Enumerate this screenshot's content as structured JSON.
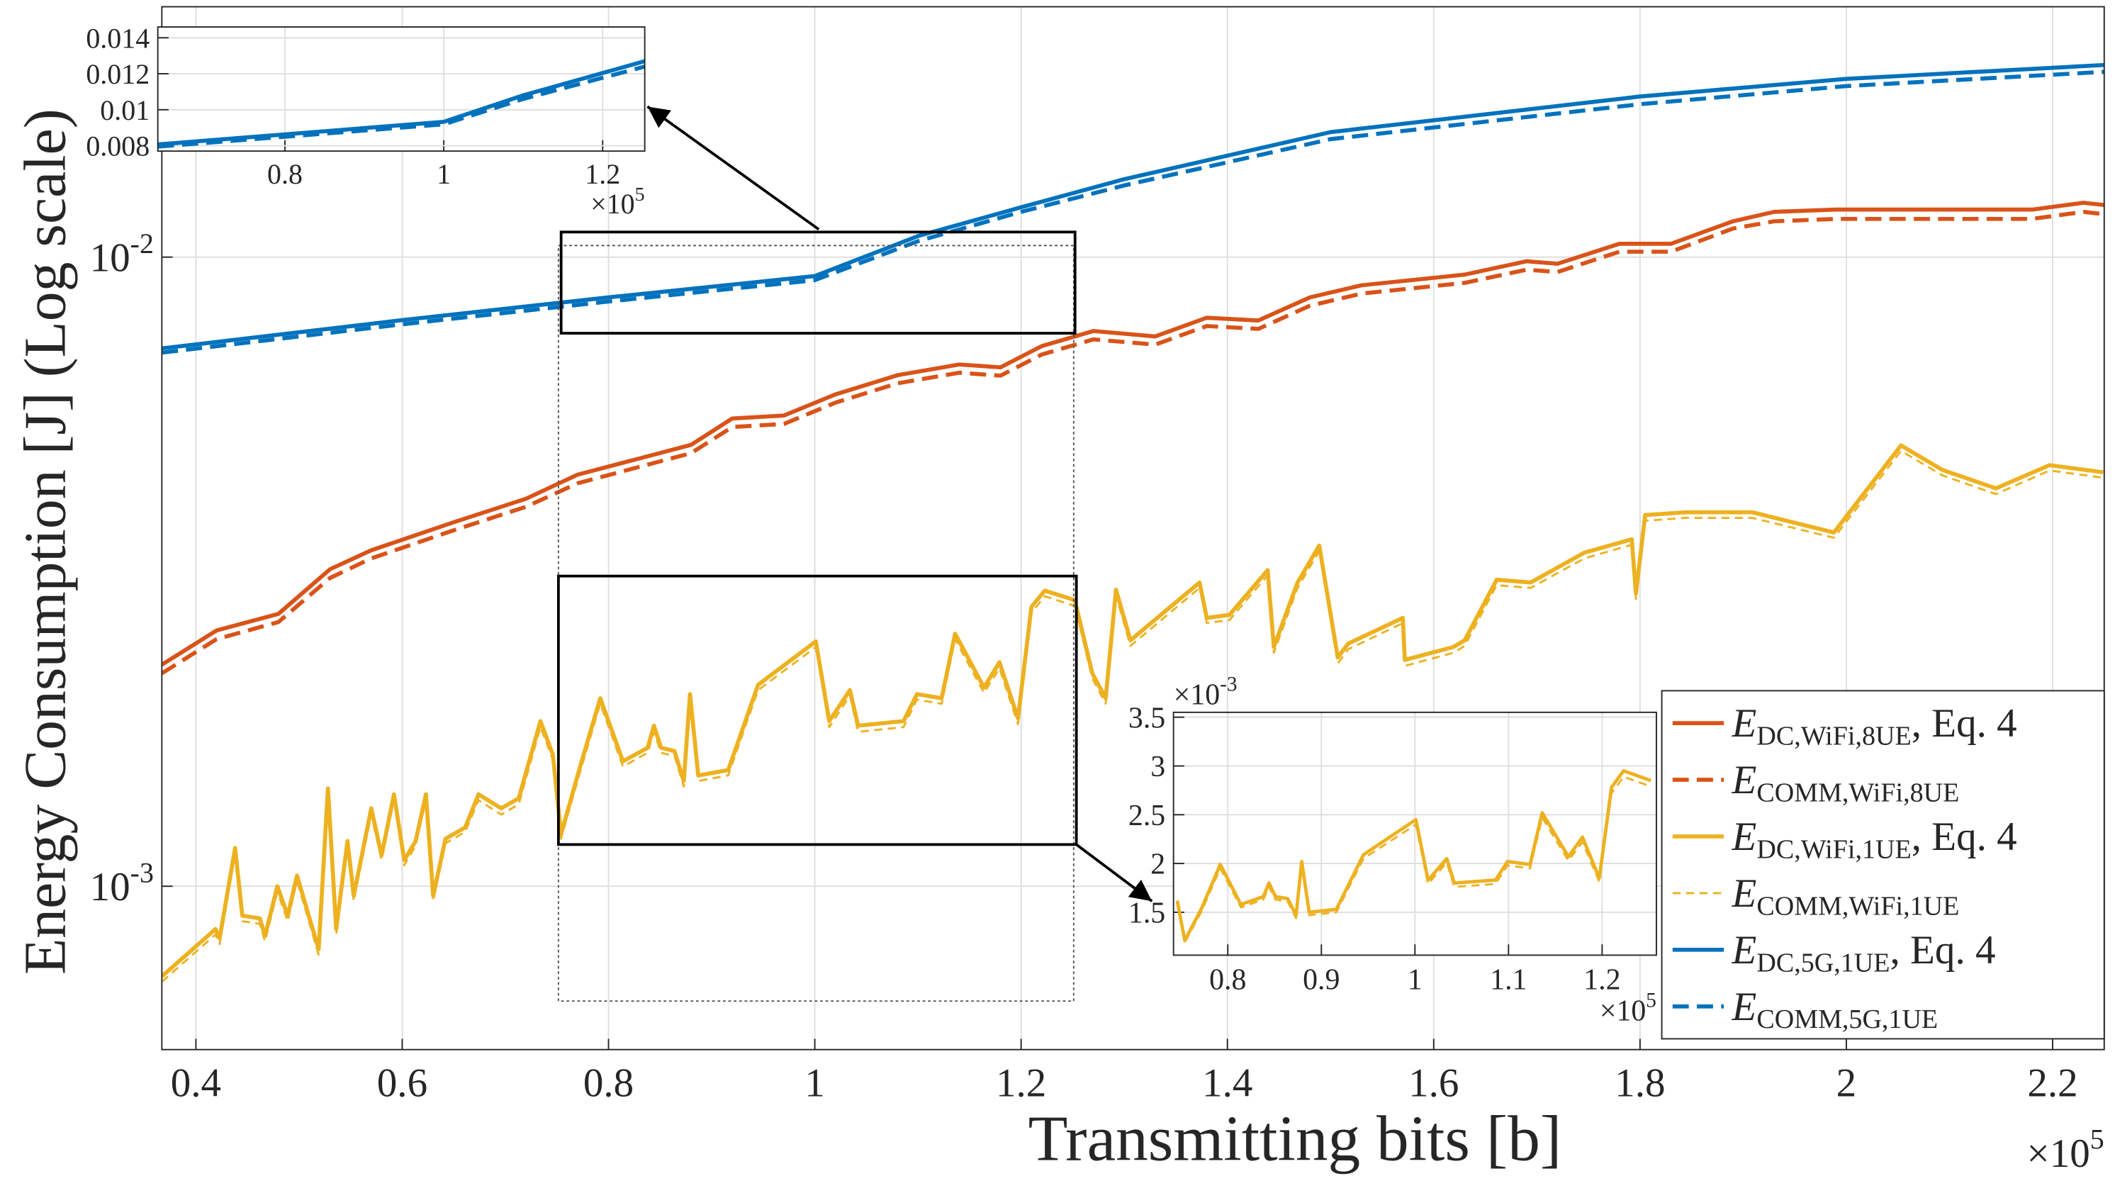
{
  "chart_data": [
    {
      "type": "line",
      "yscale": "log",
      "grid": true,
      "legend": "lower right",
      "xlabel": "Transmitting bits [b]",
      "ylabel": "Energy Consumption [J] (Log scale)",
      "x_multiplier": {
        "label": "×10",
        "exponent": "5"
      },
      "xlim": [
        0.367,
        2.25
      ],
      "ylim": [
        0.00055,
        0.025
      ],
      "xticks": [
        0.4,
        0.6,
        0.8,
        1,
        1.2,
        1.4,
        1.6,
        1.8,
        2,
        2.2
      ],
      "yticks": [
        {
          "value": 0.001,
          "label": "10",
          "exponent": "-3"
        },
        {
          "value": 0.01,
          "label": "10",
          "exponent": "-2"
        }
      ],
      "series": [
        {
          "name": "E",
          "subscript": "DC,WiFi,8UE",
          "suffix": ", Eq. 4",
          "color": "#D95319",
          "linestyle": "solid",
          "linewidth": 3,
          "x": [
            0.367,
            0.42,
            0.48,
            0.53,
            0.57,
            0.65,
            0.72,
            0.77,
            0.88,
            0.92,
            0.97,
            1.02,
            1.08,
            1.14,
            1.18,
            1.22,
            1.27,
            1.33,
            1.38,
            1.43,
            1.48,
            1.53,
            1.63,
            1.69,
            1.72,
            1.78,
            1.83,
            1.89,
            1.93,
            1.99,
            2.06,
            2.13,
            2.18,
            2.23,
            2.25
          ],
          "values": [
            0.00225,
            0.00255,
            0.00271,
            0.00319,
            0.00342,
            0.00379,
            0.00413,
            0.00451,
            0.00503,
            0.00554,
            0.0056,
            0.00605,
            0.00649,
            0.00675,
            0.00668,
            0.00722,
            0.00763,
            0.00748,
            0.00801,
            0.00793,
            0.00863,
            0.00902,
            0.00938,
            0.00985,
            0.00976,
            0.0105,
            0.0105,
            0.0114,
            0.0118,
            0.0119,
            0.0119,
            0.0119,
            0.0119,
            0.0122,
            0.0121
          ]
        },
        {
          "name": "E",
          "subscript": "COMM,WiFi,8UE",
          "color": "#D95319",
          "linestyle": "dashed",
          "linewidth": 3,
          "x": [
            0.367,
            0.42,
            0.48,
            0.53,
            0.57,
            0.65,
            0.72,
            0.77,
            0.88,
            0.92,
            0.97,
            1.02,
            1.08,
            1.14,
            1.18,
            1.22,
            1.27,
            1.33,
            1.38,
            1.43,
            1.48,
            1.53,
            1.63,
            1.69,
            1.72,
            1.78,
            1.83,
            1.89,
            1.93,
            1.99,
            2.06,
            2.13,
            2.18,
            2.23,
            2.25
          ],
          "values": [
            0.00218,
            0.00247,
            0.00263,
            0.00309,
            0.00332,
            0.00368,
            0.00401,
            0.00437,
            0.00488,
            0.00537,
            0.00543,
            0.00587,
            0.0063,
            0.00655,
            0.00648,
            0.007,
            0.0074,
            0.00726,
            0.00777,
            0.00769,
            0.00837,
            0.00875,
            0.0091,
            0.00955,
            0.00947,
            0.0102,
            0.0102,
            0.0111,
            0.0114,
            0.0115,
            0.0115,
            0.0115,
            0.0115,
            0.0118,
            0.0117
          ]
        },
        {
          "name": "E",
          "subscript": "DC,WiFi,1UE",
          "suffix": ", Eq. 4",
          "color": "#EDB120",
          "linestyle": "solid",
          "linewidth": 3,
          "x": [
            0.367,
            0.419,
            0.423,
            0.438,
            0.445,
            0.462,
            0.467,
            0.479,
            0.489,
            0.498,
            0.519,
            0.528,
            0.536,
            0.547,
            0.553,
            0.57,
            0.58,
            0.592,
            0.602,
            0.613,
            0.623,
            0.63,
            0.642,
            0.661,
            0.674,
            0.696,
            0.713,
            0.734,
            0.746,
            0.754,
            0.772,
            0.792,
            0.814,
            0.838,
            0.844,
            0.851,
            0.864,
            0.873,
            0.879,
            0.887,
            0.916,
            0.945,
            1.001,
            1.014,
            1.034,
            1.042,
            1.086,
            1.099,
            1.123,
            1.136,
            1.164,
            1.179,
            1.197,
            1.21,
            1.223,
            1.252,
            1.269,
            1.282,
            1.292,
            1.306,
            1.373,
            1.38,
            1.402,
            1.439,
            1.445,
            1.468,
            1.489,
            1.507,
            1.517,
            1.57,
            1.572,
            1.619,
            1.63,
            1.661,
            1.694,
            1.746,
            1.792,
            1.796,
            1.805,
            1.844,
            1.909,
            1.988,
            2.053,
            2.093,
            2.145,
            2.197,
            2.249
          ],
          "values": [
            0.000719,
            0.000855,
            0.000826,
            0.00115,
            0.000898,
            0.000889,
            0.000834,
            0.001,
            0.000898,
            0.00104,
            0.000794,
            0.00143,
            0.000855,
            0.00118,
            0.000966,
            0.00133,
            0.00112,
            0.0014,
            0.0011,
            0.00118,
            0.0014,
            0.000966,
            0.00119,
            0.00124,
            0.0014,
            0.00133,
            0.00138,
            0.00183,
            0.00162,
            0.00121,
            0.00154,
            0.00199,
            0.00158,
            0.00166,
            0.0018,
            0.00166,
            0.00164,
            0.00147,
            0.00202,
            0.0015,
            0.00153,
            0.00209,
            0.00245,
            0.00183,
            0.00205,
            0.0018,
            0.00183,
            0.00202,
            0.00199,
            0.00252,
            0.00207,
            0.00227,
            0.00185,
            0.00278,
            0.00295,
            0.00285,
            0.00218,
            0.00199,
            0.00296,
            0.00246,
            0.00304,
            0.00267,
            0.0027,
            0.00318,
            0.0024,
            0.00304,
            0.00348,
            0.00231,
            0.00243,
            0.00267,
            0.00229,
            0.0024,
            0.00246,
            0.00307,
            0.00304,
            0.00339,
            0.00356,
            0.00292,
            0.00389,
            0.00393,
            0.00393,
            0.00365,
            0.00502,
            0.00459,
            0.00429,
            0.00467,
            0.00455
          ]
        },
        {
          "name": "E",
          "subscript": "COMM,WiFi,1UE",
          "color": "#EDB120",
          "linestyle": "dashed",
          "linewidth": 1.5,
          "x": [
            0.367,
            0.419,
            0.423,
            0.438,
            0.445,
            0.462,
            0.467,
            0.479,
            0.489,
            0.498,
            0.519,
            0.528,
            0.536,
            0.547,
            0.553,
            0.57,
            0.58,
            0.592,
            0.602,
            0.613,
            0.623,
            0.63,
            0.642,
            0.661,
            0.674,
            0.696,
            0.713,
            0.734,
            0.746,
            0.754,
            0.772,
            0.792,
            0.814,
            0.838,
            0.844,
            0.851,
            0.864,
            0.873,
            0.879,
            0.887,
            0.916,
            0.945,
            1.001,
            1.014,
            1.034,
            1.042,
            1.086,
            1.099,
            1.123,
            1.136,
            1.164,
            1.179,
            1.197,
            1.21,
            1.223,
            1.252,
            1.269,
            1.282,
            1.292,
            1.306,
            1.373,
            1.38,
            1.402,
            1.439,
            1.445,
            1.468,
            1.489,
            1.507,
            1.517,
            1.57,
            1.572,
            1.619,
            1.63,
            1.661,
            1.694,
            1.746,
            1.792,
            1.796,
            1.805,
            1.844,
            1.909,
            1.988,
            2.053,
            2.093,
            2.145,
            2.197,
            2.249
          ],
          "values": [
            0.000705,
            0.000838,
            0.000809,
            0.00113,
            0.00088,
            0.000871,
            0.000817,
            0.00098,
            0.00088,
            0.00102,
            0.000778,
            0.0014,
            0.000838,
            0.00116,
            0.000947,
            0.0013,
            0.0011,
            0.00137,
            0.00108,
            0.00116,
            0.00137,
            0.000947,
            0.00117,
            0.00122,
            0.00137,
            0.0013,
            0.00135,
            0.00179,
            0.00159,
            0.00119,
            0.00151,
            0.00195,
            0.00155,
            0.00163,
            0.00176,
            0.00163,
            0.00161,
            0.00144,
            0.00198,
            0.00147,
            0.0015,
            0.00205,
            0.0024,
            0.00179,
            0.00201,
            0.00176,
            0.00179,
            0.00198,
            0.00195,
            0.00247,
            0.00203,
            0.00222,
            0.00181,
            0.00272,
            0.00289,
            0.00279,
            0.00214,
            0.00195,
            0.0029,
            0.00241,
            0.00298,
            0.00262,
            0.00265,
            0.00312,
            0.00235,
            0.00298,
            0.00341,
            0.00226,
            0.00238,
            0.00262,
            0.00224,
            0.00235,
            0.00241,
            0.00301,
            0.00298,
            0.00332,
            0.00349,
            0.00286,
            0.00381,
            0.00385,
            0.00385,
            0.00358,
            0.00492,
            0.0045,
            0.0042,
            0.00458,
            0.00446
          ]
        },
        {
          "name": "E",
          "subscript": "DC,5G,1UE",
          "suffix": ", Eq. 4",
          "color": "#0072BD",
          "linestyle": "solid",
          "linewidth": 3,
          "x": [
            0.367,
            0.6,
            0.8,
            1.0,
            1.1,
            1.2,
            1.3,
            1.5,
            1.8,
            2.0,
            2.25
          ],
          "values": [
            0.00716,
            0.00794,
            0.00863,
            0.00933,
            0.0108,
            0.012,
            0.0133,
            0.0158,
            0.018,
            0.0192,
            0.0202
          ]
        },
        {
          "name": "E",
          "subscript": "COMM,5G,1UE",
          "color": "#0072BD",
          "linestyle": "dashed",
          "linewidth": 3,
          "x": [
            0.367,
            0.6,
            0.8,
            1.0,
            1.1,
            1.2,
            1.3,
            1.5,
            1.8,
            2.0,
            2.25
          ],
          "values": [
            0.00705,
            0.00782,
            0.0085,
            0.00919,
            0.0106,
            0.0118,
            0.013,
            0.0154,
            0.0175,
            0.0187,
            0.0197
          ]
        }
      ]
    },
    {
      "type": "line",
      "grid": true,
      "x_multiplier": {
        "label": "×10",
        "exponent": "5"
      },
      "xlim": [
        0.64,
        1.253
      ],
      "ylim": [
        0.0077,
        0.0146
      ],
      "xticks": [
        0.8,
        1,
        1.2
      ],
      "yticks": [
        0.008,
        0.01,
        0.012,
        0.014
      ],
      "series": [
        {
          "color": "#0072BD",
          "linestyle": "solid",
          "linewidth": 3,
          "x": [
            0.64,
            0.8,
            1.0,
            1.1,
            1.253
          ],
          "values": [
            0.00807,
            0.00863,
            0.00933,
            0.0108,
            0.0127
          ]
        },
        {
          "color": "#0072BD",
          "linestyle": "dashed",
          "linewidth": 3,
          "x": [
            0.64,
            0.8,
            1.0,
            1.1,
            1.253
          ],
          "values": [
            0.00795,
            0.0085,
            0.00919,
            0.0106,
            0.0124
          ]
        }
      ]
    },
    {
      "type": "line",
      "grid": true,
      "x_multiplier": {
        "label": "×10",
        "exponent": "5"
      },
      "y_multiplier": {
        "label": "×10",
        "exponent": "-3"
      },
      "xlim": [
        0.742,
        1.258
      ],
      "ylim": [
        0.00106,
        0.00355
      ],
      "xticks": [
        0.8,
        0.9,
        1,
        1.1,
        1.2
      ],
      "yticks": [
        {
          "value": 0.0015,
          "label": "1.5"
        },
        {
          "value": 0.002,
          "label": "2"
        },
        {
          "value": 0.0025,
          "label": "2.5"
        },
        {
          "value": 0.003,
          "label": "3"
        },
        {
          "value": 0.0035,
          "label": "3.5"
        }
      ],
      "series": [
        {
          "color": "#EDB120",
          "linestyle": "solid",
          "linewidth": 2.5,
          "x": [
            0.746,
            0.754,
            0.772,
            0.792,
            0.814,
            0.838,
            0.844,
            0.851,
            0.864,
            0.873,
            0.879,
            0.887,
            0.916,
            0.945,
            1.001,
            1.014,
            1.034,
            1.042,
            1.086,
            1.099,
            1.123,
            1.136,
            1.164,
            1.179,
            1.197,
            1.21,
            1.223,
            1.252
          ],
          "values": [
            0.00162,
            0.00121,
            0.00154,
            0.00199,
            0.00158,
            0.00166,
            0.0018,
            0.00166,
            0.00164,
            0.00147,
            0.00202,
            0.0015,
            0.00153,
            0.00209,
            0.00245,
            0.00183,
            0.00205,
            0.0018,
            0.00183,
            0.00202,
            0.00199,
            0.00252,
            0.00207,
            0.00227,
            0.00185,
            0.00278,
            0.00295,
            0.00285
          ]
        },
        {
          "color": "#EDB120",
          "linestyle": "dashed",
          "linewidth": 1.5,
          "x": [
            0.746,
            0.754,
            0.772,
            0.792,
            0.814,
            0.838,
            0.844,
            0.851,
            0.864,
            0.873,
            0.879,
            0.887,
            0.916,
            0.945,
            1.001,
            1.014,
            1.034,
            1.042,
            1.086,
            1.099,
            1.123,
            1.136,
            1.164,
            1.179,
            1.197,
            1.21,
            1.223,
            1.252
          ],
          "values": [
            0.00159,
            0.00119,
            0.00151,
            0.00195,
            0.00155,
            0.00163,
            0.00176,
            0.00163,
            0.00161,
            0.00144,
            0.00198,
            0.00147,
            0.0015,
            0.00205,
            0.0024,
            0.00179,
            0.00201,
            0.00176,
            0.00179,
            0.00198,
            0.00195,
            0.00247,
            0.00203,
            0.00222,
            0.00181,
            0.00272,
            0.00289,
            0.00279
          ]
        }
      ]
    }
  ]
}
